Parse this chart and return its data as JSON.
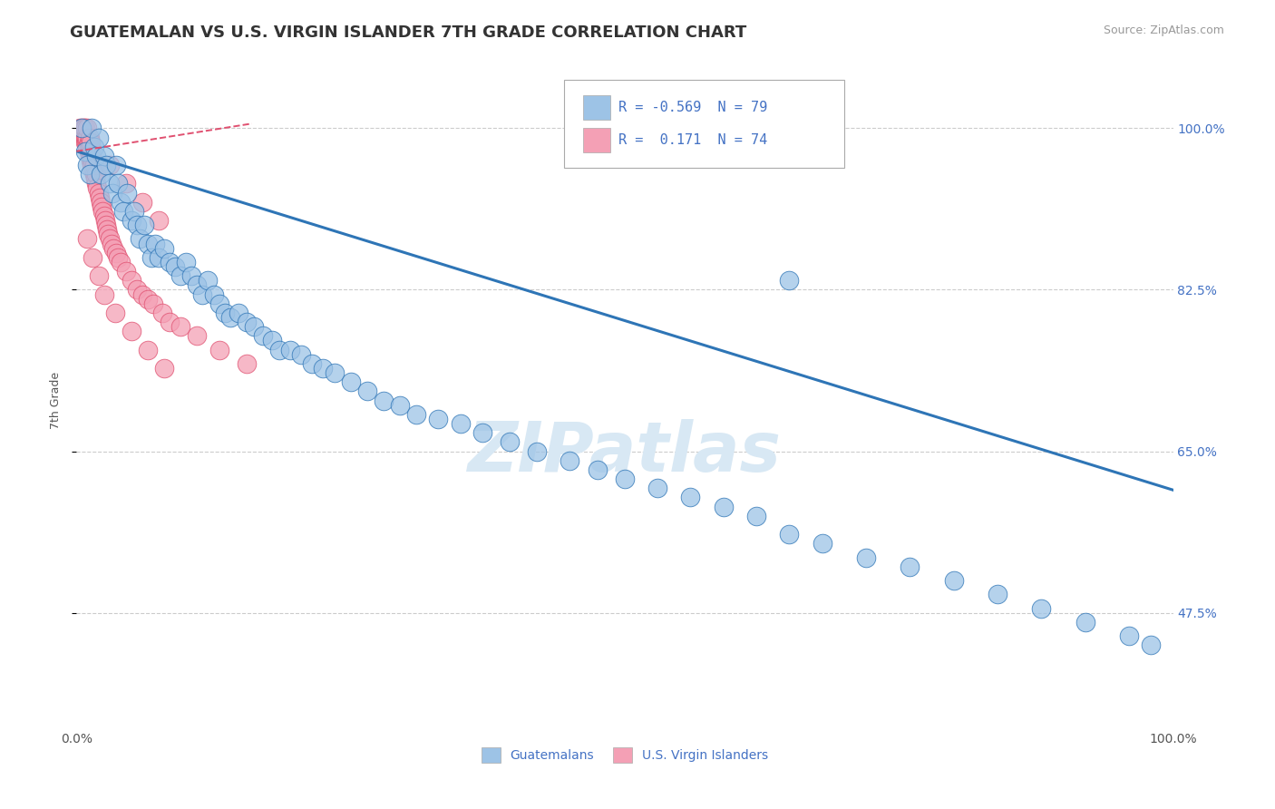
{
  "title": "GUATEMALAN VS U.S. VIRGIN ISLANDER 7TH GRADE CORRELATION CHART",
  "source": "Source: ZipAtlas.com",
  "ylabel": "7th Grade",
  "xlim": [
    0.0,
    1.0
  ],
  "ylim": [
    0.35,
    1.06
  ],
  "yticks": [
    0.475,
    0.65,
    0.825,
    1.0
  ],
  "ytick_labels": [
    "47.5%",
    "65.0%",
    "82.5%",
    "100.0%"
  ],
  "xtick_labels": [
    "0.0%",
    "100.0%"
  ],
  "xticks": [
    0.0,
    1.0
  ],
  "blue_color": "#9dc3e6",
  "pink_color": "#f4a0b5",
  "blue_line_color": "#2e75b6",
  "pink_line_color": "#e05070",
  "legend_blue_color": "#9dc3e6",
  "legend_pink_color": "#f4a0b5",
  "watermark": "ZIPatlas",
  "R_blue": -0.569,
  "N_blue": 79,
  "R_pink": 0.171,
  "N_pink": 74,
  "blue_scatter_x": [
    0.005,
    0.008,
    0.01,
    0.012,
    0.014,
    0.016,
    0.018,
    0.02,
    0.022,
    0.025,
    0.027,
    0.03,
    0.033,
    0.036,
    0.038,
    0.04,
    0.043,
    0.046,
    0.05,
    0.053,
    0.055,
    0.058,
    0.062,
    0.065,
    0.068,
    0.072,
    0.075,
    0.08,
    0.085,
    0.09,
    0.095,
    0.1,
    0.105,
    0.11,
    0.115,
    0.12,
    0.125,
    0.13,
    0.135,
    0.14,
    0.148,
    0.155,
    0.162,
    0.17,
    0.178,
    0.185,
    0.195,
    0.205,
    0.215,
    0.225,
    0.235,
    0.25,
    0.265,
    0.28,
    0.295,
    0.31,
    0.33,
    0.35,
    0.37,
    0.395,
    0.42,
    0.45,
    0.475,
    0.5,
    0.53,
    0.56,
    0.59,
    0.62,
    0.65,
    0.68,
    0.72,
    0.76,
    0.8,
    0.84,
    0.88,
    0.92,
    0.96,
    0.98,
    0.65
  ],
  "blue_scatter_y": [
    1.0,
    0.975,
    0.96,
    0.95,
    1.0,
    0.98,
    0.97,
    0.99,
    0.95,
    0.97,
    0.96,
    0.94,
    0.93,
    0.96,
    0.94,
    0.92,
    0.91,
    0.93,
    0.9,
    0.91,
    0.895,
    0.88,
    0.895,
    0.875,
    0.86,
    0.875,
    0.86,
    0.87,
    0.855,
    0.85,
    0.84,
    0.855,
    0.84,
    0.83,
    0.82,
    0.835,
    0.82,
    0.81,
    0.8,
    0.795,
    0.8,
    0.79,
    0.785,
    0.775,
    0.77,
    0.76,
    0.76,
    0.755,
    0.745,
    0.74,
    0.735,
    0.725,
    0.715,
    0.705,
    0.7,
    0.69,
    0.685,
    0.68,
    0.67,
    0.66,
    0.65,
    0.64,
    0.63,
    0.62,
    0.61,
    0.6,
    0.59,
    0.58,
    0.56,
    0.55,
    0.535,
    0.525,
    0.51,
    0.495,
    0.48,
    0.465,
    0.45,
    0.44,
    0.835
  ],
  "pink_scatter_x": [
    0.003,
    0.005,
    0.005,
    0.006,
    0.006,
    0.007,
    0.007,
    0.007,
    0.008,
    0.008,
    0.008,
    0.009,
    0.009,
    0.01,
    0.01,
    0.01,
    0.011,
    0.011,
    0.012,
    0.012,
    0.012,
    0.013,
    0.013,
    0.013,
    0.014,
    0.014,
    0.015,
    0.015,
    0.016,
    0.016,
    0.017,
    0.018,
    0.018,
    0.019,
    0.02,
    0.021,
    0.022,
    0.023,
    0.024,
    0.025,
    0.026,
    0.027,
    0.028,
    0.029,
    0.03,
    0.032,
    0.034,
    0.036,
    0.038,
    0.04,
    0.045,
    0.05,
    0.055,
    0.06,
    0.065,
    0.07,
    0.078,
    0.085,
    0.095,
    0.11,
    0.13,
    0.155,
    0.03,
    0.045,
    0.06,
    0.075,
    0.01,
    0.015,
    0.02,
    0.025,
    0.035,
    0.05,
    0.065,
    0.08
  ],
  "pink_scatter_y": [
    1.0,
    0.995,
    1.0,
    0.995,
    1.0,
    0.99,
    0.995,
    1.0,
    0.985,
    0.99,
    1.0,
    0.985,
    0.99,
    0.98,
    0.99,
    1.0,
    0.975,
    0.985,
    0.97,
    0.98,
    0.99,
    0.965,
    0.975,
    0.985,
    0.96,
    0.97,
    0.955,
    0.965,
    0.95,
    0.96,
    0.945,
    0.94,
    0.95,
    0.935,
    0.93,
    0.925,
    0.92,
    0.915,
    0.91,
    0.905,
    0.9,
    0.895,
    0.89,
    0.885,
    0.88,
    0.875,
    0.87,
    0.865,
    0.86,
    0.855,
    0.845,
    0.835,
    0.825,
    0.82,
    0.815,
    0.81,
    0.8,
    0.79,
    0.785,
    0.775,
    0.76,
    0.745,
    0.96,
    0.94,
    0.92,
    0.9,
    0.88,
    0.86,
    0.84,
    0.82,
    0.8,
    0.78,
    0.76,
    0.74
  ],
  "blue_trend_x": [
    0.0,
    1.0
  ],
  "blue_trend_y": [
    0.975,
    0.608
  ],
  "pink_trend_x": [
    0.0,
    0.16
  ],
  "pink_trend_y": [
    0.975,
    1.005
  ],
  "dashed_line_y": 1.0,
  "background_color": "#ffffff",
  "grid_color": "#cccccc",
  "title_fontsize": 13,
  "axis_label_fontsize": 9,
  "tick_fontsize": 10,
  "watermark_fontsize": 55,
  "watermark_color": "#d8e8f4",
  "legend_fontsize": 11
}
